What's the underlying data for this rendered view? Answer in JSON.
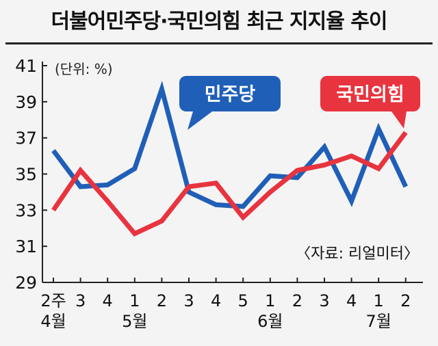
{
  "title": "더불어민주당·국민의힘 최근 지지율 추이",
  "unit_label": "(단위: %)",
  "source_label": "〈자료: 리얼미터〉",
  "colors": {
    "민주당": "#1f5fb7",
    "국민의힘": "#e7343f",
    "axis": "#222222",
    "background": "#f4f4f4"
  },
  "chart_data": {
    "type": "line",
    "title": "더불어민주당·국민의힘 최근 지지율 추이",
    "ylabel": "(단위: %)",
    "xlabel": "",
    "ylim": [
      29,
      41
    ],
    "yticks": [
      29,
      31,
      33,
      35,
      37,
      39,
      41
    ],
    "grid": false,
    "legend": "callout labels",
    "categories": [
      "2주",
      "3",
      "4",
      "1",
      "2",
      "3",
      "4",
      "5",
      "1",
      "2",
      "3",
      "4",
      "1",
      "2"
    ],
    "months": [
      {
        "label": "4월",
        "index": 0
      },
      {
        "label": "5월",
        "index": 3
      },
      {
        "label": "6월",
        "index": 8
      },
      {
        "label": "7월",
        "index": 12
      }
    ],
    "series": [
      {
        "name": "민주당",
        "color": "#1f5fb7",
        "values": [
          36.3,
          34.3,
          34.4,
          35.3,
          39.7,
          34.0,
          33.3,
          33.2,
          34.9,
          34.8,
          36.5,
          33.5,
          37.5,
          34.3
        ]
      },
      {
        "name": "국민의힘",
        "color": "#e7343f",
        "values": [
          33.0,
          35.2,
          33.5,
          31.7,
          32.4,
          34.3,
          34.5,
          32.6,
          34.0,
          35.2,
          35.5,
          36.0,
          35.3,
          37.3
        ]
      }
    ]
  }
}
